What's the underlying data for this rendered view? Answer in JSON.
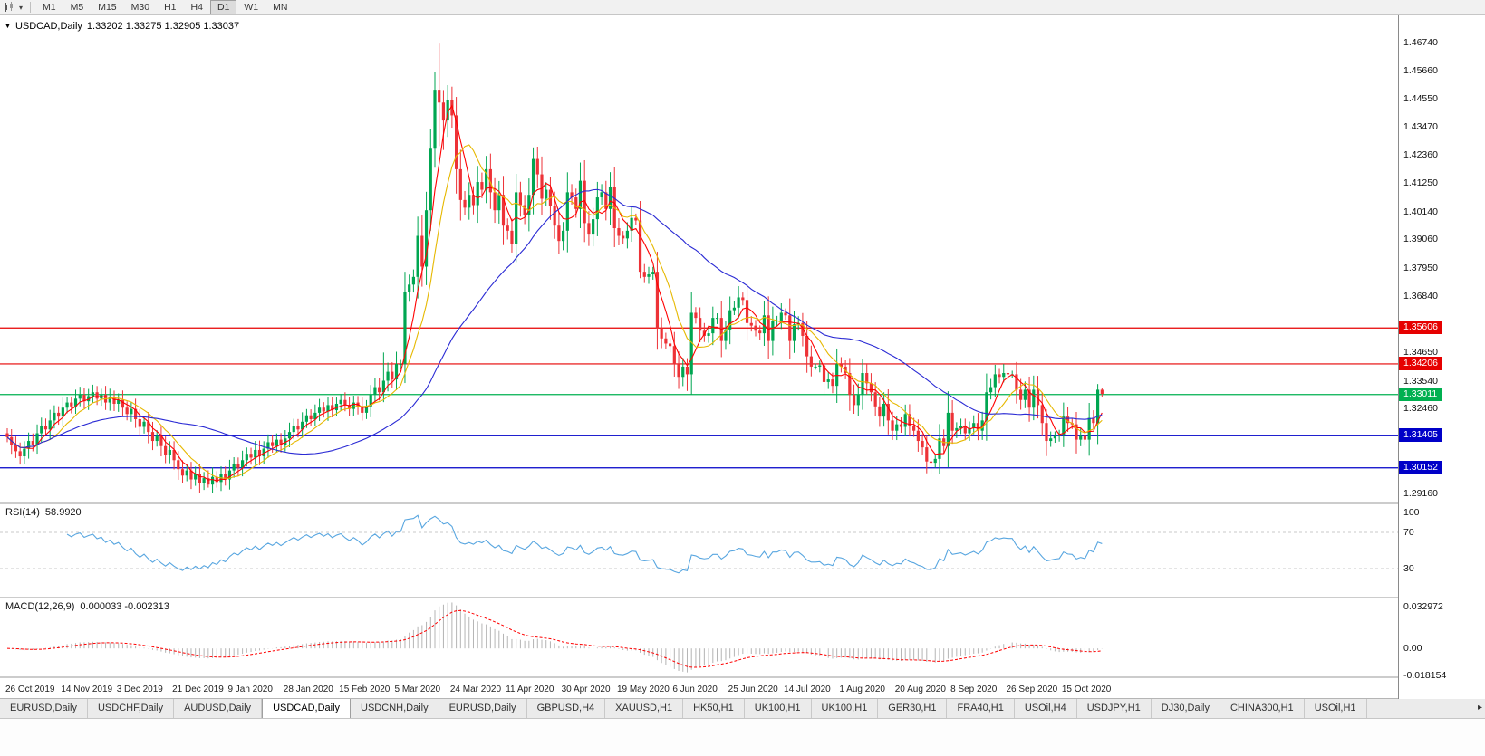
{
  "toolbar": {
    "timeframes": [
      "M1",
      "M5",
      "M15",
      "M30",
      "H1",
      "H4",
      "D1",
      "W1",
      "MN"
    ],
    "active": "D1"
  },
  "chart_data": {
    "type": "candlestick",
    "symbol": "USDCAD,Daily",
    "ohlc_text": "1.33202 1.33275 1.32905 1.33037",
    "ylim": [
      1.288,
      1.478
    ],
    "price_ticks": [
      1.4674,
      1.4566,
      1.4455,
      1.4347,
      1.4236,
      1.4125,
      1.4014,
      1.3906,
      1.3795,
      1.3684,
      1.3573,
      1.3465,
      1.3354,
      1.3246,
      1.3135,
      1.3027,
      1.2916
    ],
    "hlines": [
      {
        "price": 1.35606,
        "color": "#E60000"
      },
      {
        "price": 1.34206,
        "color": "#E60000"
      },
      {
        "price": 1.33011,
        "color": "#00B050"
      },
      {
        "price": 1.31405,
        "color": "#0000C8"
      },
      {
        "price": 1.30152,
        "color": "#0000C8"
      }
    ],
    "date_labels": [
      {
        "i": 0,
        "label": "26 Oct 2019"
      },
      {
        "i": 13,
        "label": "14 Nov 2019"
      },
      {
        "i": 26,
        "label": "3 Dec 2019"
      },
      {
        "i": 39,
        "label": "21 Dec 2019"
      },
      {
        "i": 52,
        "label": "9 Jan 2020"
      },
      {
        "i": 65,
        "label": "28 Jan 2020"
      },
      {
        "i": 78,
        "label": "15 Feb 2020"
      },
      {
        "i": 91,
        "label": "5 Mar 2020"
      },
      {
        "i": 104,
        "label": "24 Mar 2020"
      },
      {
        "i": 117,
        "label": "11 Apr 2020"
      },
      {
        "i": 130,
        "label": "30 Apr 2020"
      },
      {
        "i": 143,
        "label": "19 May 2020"
      },
      {
        "i": 156,
        "label": "6 Jun 2020"
      },
      {
        "i": 169,
        "label": "25 Jun 2020"
      },
      {
        "i": 182,
        "label": "14 Jul 2020"
      },
      {
        "i": 195,
        "label": "1 Aug 2020"
      },
      {
        "i": 208,
        "label": "20 Aug 2020"
      },
      {
        "i": 221,
        "label": "8 Sep 2020"
      },
      {
        "i": 234,
        "label": "26 Sep 2020"
      },
      {
        "i": 247,
        "label": "15 Oct 2020"
      }
    ],
    "candles": {
      "first_open": 1.315,
      "closes": [
        1.3135,
        1.3105,
        1.308,
        1.306,
        1.309,
        1.312,
        1.3105,
        1.315,
        1.318,
        1.3165,
        1.32,
        1.323,
        1.3215,
        1.325,
        1.327,
        1.3255,
        1.3285,
        1.33,
        1.3275,
        1.3295,
        1.331,
        1.3285,
        1.33,
        1.327,
        1.329,
        1.3265,
        1.328,
        1.325,
        1.3225,
        1.3245,
        1.3205,
        1.3175,
        1.3195,
        1.3155,
        1.312,
        1.314,
        1.31,
        1.3065,
        1.3085,
        1.3045,
        1.301,
        1.2985,
        1.3005,
        1.297,
        1.299,
        1.2955,
        1.2975,
        1.295,
        1.298,
        1.296,
        1.299,
        1.297,
        1.3005,
        1.303,
        1.3015,
        1.3045,
        1.307,
        1.3055,
        1.3085,
        1.306,
        1.309,
        1.3115,
        1.31,
        1.3125,
        1.3105,
        1.313,
        1.3155,
        1.318,
        1.3165,
        1.3195,
        1.322,
        1.3205,
        1.323,
        1.325,
        1.3235,
        1.326,
        1.324,
        1.3265,
        1.328,
        1.326,
        1.3245,
        1.327,
        1.3255,
        1.323,
        1.3255,
        1.33,
        1.333,
        1.331,
        1.3355,
        1.339,
        1.336,
        1.342,
        1.342,
        1.37,
        1.373,
        1.376,
        1.392,
        1.38,
        1.402,
        1.426,
        1.449,
        1.444,
        1.437,
        1.445,
        1.439,
        1.418,
        1.406,
        1.403,
        1.408,
        1.404,
        1.413,
        1.41,
        1.418,
        1.409,
        1.402,
        1.408,
        1.396,
        1.394,
        1.389,
        1.409,
        1.404,
        1.4,
        1.408,
        1.422,
        1.416,
        1.4065,
        1.41,
        1.4035,
        1.396,
        1.39,
        1.394,
        1.409,
        1.407,
        1.4025,
        1.4135,
        1.397,
        1.3925,
        1.3985,
        1.407,
        1.409,
        1.4025,
        1.411,
        1.395,
        1.392,
        1.391,
        1.394,
        1.399,
        1.398,
        1.378,
        1.376,
        1.377,
        1.378,
        1.356,
        1.352,
        1.35,
        1.349,
        1.342,
        1.337,
        1.341,
        1.338,
        1.362,
        1.36,
        1.355,
        1.353,
        1.354,
        1.36,
        1.36,
        1.351,
        1.3555,
        1.363,
        1.364,
        1.368,
        1.367,
        1.358,
        1.357,
        1.355,
        1.354,
        1.361,
        1.351,
        1.359,
        1.359,
        1.362,
        1.361,
        1.351,
        1.3575,
        1.358,
        1.353,
        1.345,
        1.341,
        1.341,
        1.3415,
        1.335,
        1.336,
        1.3335,
        1.342,
        1.341,
        1.3385,
        1.33,
        1.326,
        1.33,
        1.3385,
        1.3345,
        1.331,
        1.3255,
        1.3215,
        1.3265,
        1.32,
        1.316,
        1.3185,
        1.3175,
        1.3225,
        1.318,
        1.316,
        1.312,
        1.3095,
        1.304,
        1.3035,
        1.305,
        1.313,
        1.31,
        1.323,
        1.316,
        1.317,
        1.318,
        1.315,
        1.317,
        1.319,
        1.316,
        1.32,
        1.331,
        1.333,
        1.338,
        1.337,
        1.3385,
        1.338,
        1.338,
        1.332,
        1.328,
        1.332,
        1.325,
        1.332,
        1.326,
        1.319,
        1.312,
        1.313,
        1.314,
        1.3145,
        1.3215,
        1.319,
        1.3185,
        1.3125,
        1.314,
        1.3125,
        1.321,
        1.319,
        1.332,
        1.33037
      ],
      "spikes": {
        "44": {
          "l": 1.2945
        },
        "47": {
          "l": 1.2938
        },
        "88": {
          "h": 1.3465
        },
        "91": {
          "h": 1.3468
        },
        "96": {
          "h": 1.3995
        },
        "100": {
          "h": 1.456
        },
        "101": {
          "h": 1.467,
          "l": 1.427
        },
        "102": {
          "l": 1.4255
        },
        "105": {
          "l": 1.4085
        },
        "118": {
          "l": 1.3855
        },
        "123": {
          "h": 1.4265
        },
        "148": {
          "l": 1.3755
        },
        "159": {
          "l": 1.3315
        },
        "215": {
          "l": 1.2994
        },
        "216": {
          "l": 1.299
        },
        "233": {
          "h": 1.342
        },
        "234": {
          "h": 1.3416
        },
        "255": {
          "h": 1.3342
        },
        "256": {
          "h": 1.3328,
          "l": 1.3291
        }
      }
    },
    "moving_averages": [
      {
        "period": 5,
        "color": "#FF0000"
      },
      {
        "period": 10,
        "color": "#E6B800"
      },
      {
        "period": 40,
        "color": "#2A2AD4"
      }
    ],
    "colors": {
      "up": "#00A651",
      "down": "#ED3237"
    },
    "rsi": {
      "name": "RSI(14)",
      "value": "58.9920",
      "period": 14,
      "color": "#58A6E0",
      "levels": [
        70,
        30
      ],
      "axis_labels": [
        "100",
        "70",
        "30"
      ]
    },
    "macd": {
      "name": "MACD(12,26,9)",
      "values": "0.000033 -0.002313",
      "fast": 12,
      "slow": 26,
      "signal": 9,
      "hist_color": "#B4B4B4",
      "signal_color": "#FF0000",
      "axis_max": 0.032972,
      "axis_min": -0.018154,
      "axis_labels": [
        "0.032972",
        "0.00",
        "-0.018154"
      ]
    }
  },
  "tabs": {
    "items": [
      "EURUSD,Daily",
      "USDCHF,Daily",
      "AUDUSD,Daily",
      "USDCAD,Daily",
      "USDCNH,Daily",
      "EURUSD,Daily",
      "GBPUSD,H4",
      "XAUUSD,H1",
      "HK50,H1",
      "UK100,H1",
      "UK100,H1",
      "GER30,H1",
      "FRA40,H1",
      "USOil,H4",
      "USDJPY,H1",
      "DJ30,Daily",
      "CHINA300,H1",
      "USOil,H1"
    ],
    "active_index": 3,
    "scroll_right_glyph": "▸"
  }
}
